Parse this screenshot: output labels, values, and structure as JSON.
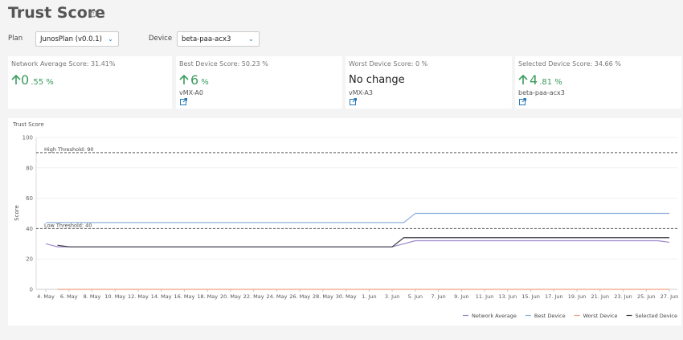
{
  "header": {
    "title": "Trust Score"
  },
  "filters": {
    "plan_label": "Plan",
    "plan_value": "JunosPlan (v0.0.1)",
    "device_label": "Device",
    "device_value": "beta-paa-acx3"
  },
  "cards": [
    {
      "label": "Network Average Score: 31.41%",
      "whole": "0",
      "fraction": ".55 %"
    },
    {
      "label": "Best Device Score: 50.23 %",
      "whole": "6",
      "fraction": "%",
      "device": "vMX-A0"
    },
    {
      "label": "Worst Device Score: 0 %",
      "text": "No change",
      "device": "vMX-A3"
    },
    {
      "label": "Selected Device Score: 34.66 %",
      "whole": "4",
      "fraction": ".81 %",
      "device": "beta-paa-acx3"
    }
  ],
  "chart_data": {
    "type": "line",
    "title": "Trust Score",
    "y_label": "Score",
    "categories": [
      "4. May",
      null,
      "6. May",
      null,
      "8. May",
      null,
      "10. May",
      null,
      "12. May",
      null,
      "14. May",
      null,
      "16. May",
      null,
      "18. May",
      null,
      "20. May",
      null,
      "22. May",
      null,
      "24. May",
      null,
      "26. May",
      null,
      "28. May",
      null,
      "30. May",
      null,
      "1. Jun",
      null,
      "3. Jun",
      null,
      "5. Jun",
      null,
      "7. Jun",
      null,
      "9. Jun",
      null,
      "11. Jun",
      null,
      "13. Jun",
      null,
      "15. Jun",
      null,
      "17. Jun",
      null,
      "19. Jun",
      null,
      "21. Jun",
      null,
      "23. Jun",
      null,
      "25. Jun",
      null,
      "27. Jun"
    ],
    "series": [
      {
        "name": "Network Average",
        "color": "#9b87c9",
        "values": [
          30,
          28,
          28,
          28,
          28,
          28,
          28,
          28,
          28,
          28,
          28,
          28,
          28,
          28,
          28,
          28,
          28,
          28,
          28,
          28,
          28,
          28,
          28,
          28,
          28,
          28,
          28,
          28,
          28,
          28,
          28,
          30,
          32,
          32,
          32,
          32,
          32,
          32,
          32,
          32,
          32,
          32,
          32,
          32,
          32,
          32,
          32,
          32,
          32,
          32,
          32,
          32,
          32,
          32,
          31
        ]
      },
      {
        "name": "Best Device",
        "color": "#8fb0dc",
        "values": [
          44,
          44,
          44,
          44,
          44,
          44,
          44,
          44,
          44,
          44,
          44,
          44,
          44,
          44,
          44,
          44,
          44,
          44,
          44,
          44,
          44,
          44,
          44,
          44,
          44,
          44,
          44,
          44,
          44,
          44,
          44,
          44,
          50,
          50,
          50,
          50,
          50,
          50,
          50,
          50,
          50,
          50,
          50,
          50,
          50,
          50,
          50,
          50,
          50,
          50,
          50,
          50,
          50,
          50,
          50
        ]
      },
      {
        "name": "Worst Device",
        "color": "#f0a080",
        "values": [
          null,
          0,
          0,
          0,
          0,
          0,
          0,
          0,
          0,
          0,
          0,
          0,
          0,
          0,
          0,
          0,
          0,
          0,
          0,
          0,
          0,
          0,
          0,
          0,
          0,
          0,
          0,
          0,
          0,
          0,
          0,
          0,
          0,
          0,
          0,
          0,
          0,
          0,
          0,
          0,
          0,
          0,
          0,
          0,
          0,
          0,
          0,
          0,
          0,
          0,
          0,
          0,
          0,
          0,
          0
        ]
      },
      {
        "name": "Selected Device",
        "color": "#3c3c4c",
        "values": [
          null,
          29,
          28,
          28,
          28,
          28,
          28,
          28,
          28,
          28,
          28,
          28,
          28,
          28,
          28,
          28,
          28,
          28,
          28,
          28,
          28,
          28,
          28,
          28,
          28,
          28,
          28,
          28,
          28,
          28,
          28,
          34,
          34,
          34,
          34,
          34,
          34,
          34,
          34,
          34,
          34,
          34,
          34,
          34,
          34,
          34,
          34,
          34,
          34,
          34,
          34,
          34,
          34,
          34,
          34
        ]
      }
    ],
    "ylim": [
      0,
      100
    ],
    "yticks": [
      0,
      20,
      40,
      60,
      80,
      100
    ],
    "grid": true,
    "thresholds": [
      {
        "label": "High Threshold: 90",
        "value": 90
      },
      {
        "label": "Low Threshold: 40",
        "value": 40
      }
    ],
    "legend": "bottom-right"
  }
}
